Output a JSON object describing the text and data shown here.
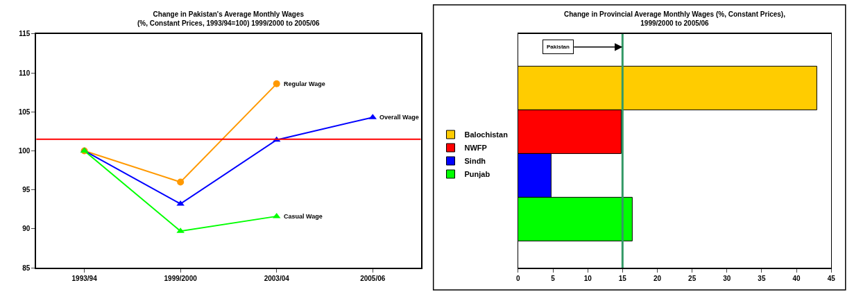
{
  "chart_data": [
    {
      "type": "line",
      "title": "Change in Pakistan's Average Monthly Wages\n(%, Constant Prices, 1993/94=100) 1999/2000 to 2005/06",
      "categories": [
        "1993/94",
        "1999/2000",
        "2003/04",
        "2005/06"
      ],
      "series": [
        {
          "name": "Regular Wage",
          "color": "#ff9900",
          "marker": "circle",
          "values": [
            100,
            96.0,
            108.6,
            null
          ]
        },
        {
          "name": "Overall Wage",
          "color": "#0000ff",
          "marker": "triangle",
          "values": [
            100,
            93.2,
            101.4,
            104.3
          ]
        },
        {
          "name": "Casual Wage",
          "color": "#00ff00",
          "marker": "triangle",
          "values": [
            100,
            89.7,
            91.6,
            null
          ]
        }
      ],
      "ylim": [
        85,
        115
      ],
      "yticks": [
        85,
        90,
        95,
        100,
        105,
        110,
        115
      ],
      "legend": false,
      "ref_lines": [
        {
          "axis": "y",
          "value": 101.5,
          "color": "#ff0000"
        }
      ]
    },
    {
      "type": "bar",
      "orientation": "horizontal",
      "title": "Change in Provincial Average Monthly Wages (%, Constant Prices),\n1999/2000 to 2005/06",
      "categories": [
        null,
        null,
        null,
        null
      ],
      "series": [
        {
          "name": "Balochistan",
          "color": "#ffcc00",
          "values": [
            43.0,
            null,
            null,
            null
          ]
        },
        {
          "name": "NWFP",
          "color": "#ff0000",
          "values": [
            null,
            14.9,
            null,
            null
          ]
        },
        {
          "name": "Sindh",
          "color": "#0000ff",
          "values": [
            null,
            null,
            4.8,
            null
          ]
        },
        {
          "name": "Punjab",
          "color": "#00ff00",
          "values": [
            null,
            null,
            null,
            16.5
          ]
        }
      ],
      "xlim": [
        0,
        45
      ],
      "xticks": [
        0,
        5,
        10,
        15,
        20,
        25,
        30,
        35,
        40,
        45
      ],
      "legend": "left",
      "ref_lines": [
        {
          "axis": "x",
          "value": 15,
          "label": "Pakistan",
          "color": "#339966"
        }
      ]
    }
  ]
}
